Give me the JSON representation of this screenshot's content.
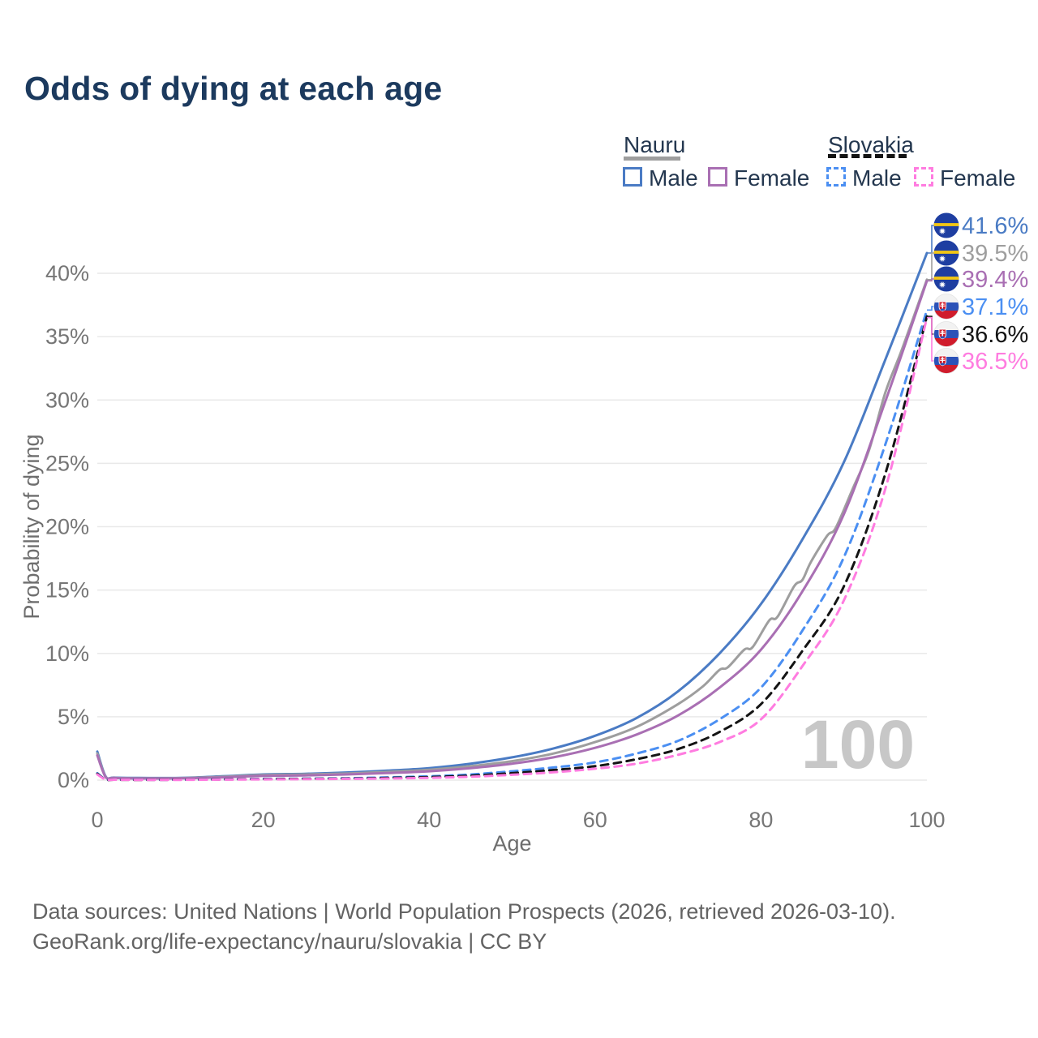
{
  "title": "Odds of dying at each age",
  "legend": {
    "groups": [
      {
        "country": "Nauru",
        "line_style": "solid",
        "underline_color": "#9e9e9e",
        "items": [
          {
            "label": "Male",
            "color": "#4a7bc4"
          },
          {
            "label": "Female",
            "color": "#a96fb3"
          }
        ]
      },
      {
        "country": "Slovakia",
        "line_style": "dashed",
        "underline_color": "#141414",
        "items": [
          {
            "label": "Male",
            "color": "#4b8ff2"
          },
          {
            "label": "Female",
            "color": "#ff7ce0"
          }
        ]
      }
    ]
  },
  "footer": {
    "line1": "Data sources: United Nations | World Population Prospects (2026, retrieved 2026-03-10).",
    "line2": "GeoRank.org/life-expectancy/nauru/slovakia | CC BY"
  },
  "chart_data": {
    "type": "line",
    "title": "Odds of dying at each age",
    "xlabel": "Age",
    "ylabel": "Probability of dying",
    "xlim": [
      0,
      100
    ],
    "ylim": [
      0,
      43
    ],
    "x_ticks": [
      0,
      20,
      40,
      60,
      80,
      100
    ],
    "y_ticks": [
      0,
      5,
      10,
      15,
      20,
      25,
      30,
      35,
      40
    ],
    "y_tick_suffix": "%",
    "grid": "horizontal-only",
    "watermark": "100",
    "legend_position": "top-right",
    "colors": {
      "grid": "#e9e9e9",
      "tick_text": "#767676",
      "axis_title_text": "#6e6e6e",
      "watermark": "#c7c7c7"
    },
    "series": [
      {
        "name": "Nauru — Male",
        "country": "Nauru",
        "sex": "Male",
        "color": "#4a7bc4",
        "line_style": "solid",
        "flag": "nauru",
        "end_label": "41.6%",
        "end_value": 41.6,
        "points": [
          [
            0,
            2.25
          ],
          [
            1,
            0.3
          ],
          [
            2,
            0.2
          ],
          [
            5,
            0.17
          ],
          [
            10,
            0.18
          ],
          [
            15,
            0.3
          ],
          [
            20,
            0.45
          ],
          [
            25,
            0.5
          ],
          [
            30,
            0.6
          ],
          [
            35,
            0.75
          ],
          [
            40,
            0.95
          ],
          [
            45,
            1.3
          ],
          [
            50,
            1.8
          ],
          [
            55,
            2.5
          ],
          [
            60,
            3.5
          ],
          [
            65,
            4.9
          ],
          [
            70,
            7.0
          ],
          [
            75,
            10.0
          ],
          [
            80,
            13.9
          ],
          [
            85,
            19.0
          ],
          [
            90,
            25.1
          ],
          [
            95,
            33.2
          ],
          [
            100,
            41.6
          ]
        ]
      },
      {
        "name": "Nauru — Both sexes",
        "country": "Nauru",
        "sex": "Both",
        "color": "#9e9e9e",
        "line_style": "solid",
        "flag": "nauru",
        "end_label": "39.5%",
        "end_value": 39.5,
        "points": [
          [
            0,
            2.1
          ],
          [
            1,
            0.27
          ],
          [
            2,
            0.18
          ],
          [
            5,
            0.15
          ],
          [
            10,
            0.16
          ],
          [
            15,
            0.26
          ],
          [
            20,
            0.4
          ],
          [
            25,
            0.45
          ],
          [
            30,
            0.52
          ],
          [
            35,
            0.65
          ],
          [
            40,
            0.82
          ],
          [
            45,
            1.1
          ],
          [
            50,
            1.5
          ],
          [
            55,
            2.1
          ],
          [
            60,
            3.0
          ],
          [
            65,
            4.2
          ],
          [
            70,
            6.0
          ],
          [
            73,
            7.4
          ],
          [
            75,
            8.7
          ],
          [
            76,
            8.9
          ],
          [
            78,
            10.3
          ],
          [
            79,
            10.5
          ],
          [
            81,
            12.6
          ],
          [
            82,
            12.9
          ],
          [
            84,
            15.3
          ],
          [
            85,
            15.8
          ],
          [
            86,
            17.2
          ],
          [
            88,
            19.3
          ],
          [
            89,
            19.9
          ],
          [
            91,
            22.9
          ],
          [
            93,
            26.0
          ],
          [
            95,
            30.6
          ],
          [
            97,
            34.0
          ],
          [
            100,
            39.5
          ]
        ]
      },
      {
        "name": "Nauru — Female",
        "country": "Nauru",
        "sex": "Female",
        "color": "#a96fb3",
        "line_style": "solid",
        "flag": "nauru",
        "end_label": "39.4%",
        "end_value": 39.4,
        "points": [
          [
            0,
            1.95
          ],
          [
            1,
            0.25
          ],
          [
            2,
            0.17
          ],
          [
            5,
            0.13
          ],
          [
            10,
            0.14
          ],
          [
            15,
            0.22
          ],
          [
            20,
            0.33
          ],
          [
            25,
            0.37
          ],
          [
            30,
            0.45
          ],
          [
            35,
            0.56
          ],
          [
            40,
            0.7
          ],
          [
            45,
            0.95
          ],
          [
            50,
            1.3
          ],
          [
            55,
            1.8
          ],
          [
            60,
            2.55
          ],
          [
            65,
            3.6
          ],
          [
            70,
            5.1
          ],
          [
            75,
            7.3
          ],
          [
            80,
            10.3
          ],
          [
            85,
            14.9
          ],
          [
            90,
            21.0
          ],
          [
            95,
            29.9
          ],
          [
            100,
            39.4
          ]
        ]
      },
      {
        "name": "Slovakia — Male",
        "country": "Slovakia",
        "sex": "Male",
        "color": "#4b8ff2",
        "line_style": "dashed",
        "flag": "slovakia",
        "end_label": "37.1%",
        "end_value": 37.1,
        "points": [
          [
            0,
            0.55
          ],
          [
            1,
            0.06
          ],
          [
            2,
            0.04
          ],
          [
            5,
            0.03
          ],
          [
            10,
            0.03
          ],
          [
            15,
            0.06
          ],
          [
            20,
            0.1
          ],
          [
            25,
            0.12
          ],
          [
            30,
            0.15
          ],
          [
            35,
            0.22
          ],
          [
            40,
            0.3
          ],
          [
            45,
            0.45
          ],
          [
            50,
            0.7
          ],
          [
            55,
            1.0
          ],
          [
            60,
            1.4
          ],
          [
            65,
            2.1
          ],
          [
            70,
            3.1
          ],
          [
            75,
            4.8
          ],
          [
            80,
            7.3
          ],
          [
            85,
            11.8
          ],
          [
            90,
            17.6
          ],
          [
            95,
            26.5
          ],
          [
            100,
            37.1
          ]
        ]
      },
      {
        "name": "Slovakia — Both sexes",
        "country": "Slovakia",
        "sex": "Both",
        "color": "#141414",
        "line_style": "dashed",
        "flag": "slovakia",
        "end_label": "36.6%",
        "end_value": 36.6,
        "points": [
          [
            0,
            0.5
          ],
          [
            1,
            0.05
          ],
          [
            2,
            0.03
          ],
          [
            5,
            0.02
          ],
          [
            10,
            0.03
          ],
          [
            15,
            0.05
          ],
          [
            20,
            0.08
          ],
          [
            25,
            0.1
          ],
          [
            30,
            0.12
          ],
          [
            35,
            0.17
          ],
          [
            40,
            0.24
          ],
          [
            45,
            0.35
          ],
          [
            50,
            0.55
          ],
          [
            55,
            0.8
          ],
          [
            60,
            1.1
          ],
          [
            65,
            1.65
          ],
          [
            70,
            2.45
          ],
          [
            75,
            3.8
          ],
          [
            80,
            6.0
          ],
          [
            85,
            10.2
          ],
          [
            90,
            15.3
          ],
          [
            95,
            24.2
          ],
          [
            100,
            36.6
          ]
        ]
      },
      {
        "name": "Slovakia — Female",
        "country": "Slovakia",
        "sex": "Female",
        "color": "#ff7ce0",
        "line_style": "dashed",
        "flag": "slovakia",
        "end_label": "36.5%",
        "end_value": 36.5,
        "points": [
          [
            0,
            0.45
          ],
          [
            1,
            0.05
          ],
          [
            2,
            0.03
          ],
          [
            5,
            0.02
          ],
          [
            10,
            0.02
          ],
          [
            15,
            0.04
          ],
          [
            20,
            0.06
          ],
          [
            25,
            0.08
          ],
          [
            30,
            0.1
          ],
          [
            35,
            0.13
          ],
          [
            40,
            0.18
          ],
          [
            45,
            0.27
          ],
          [
            50,
            0.42
          ],
          [
            55,
            0.62
          ],
          [
            60,
            0.9
          ],
          [
            65,
            1.3
          ],
          [
            70,
            2.0
          ],
          [
            75,
            3.0
          ],
          [
            80,
            4.8
          ],
          [
            85,
            9.0
          ],
          [
            90,
            14.2
          ],
          [
            95,
            23.0
          ],
          [
            100,
            36.5
          ]
        ]
      }
    ]
  }
}
